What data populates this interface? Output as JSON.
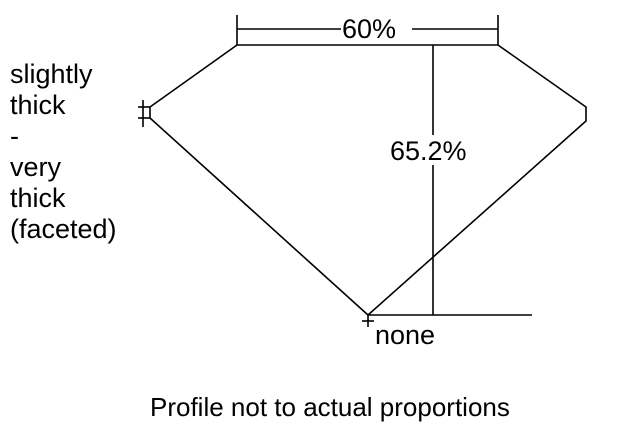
{
  "diagram": {
    "table_label": "60%",
    "depth_label": "65.2%",
    "girdle_label_lines": [
      "slightly",
      "thick",
      "-",
      "very",
      "thick",
      "(faceted)"
    ],
    "culet_label": "none",
    "caption": "Profile not to actual proportions",
    "line_color": "#000000",
    "background_color": "#ffffff"
  }
}
